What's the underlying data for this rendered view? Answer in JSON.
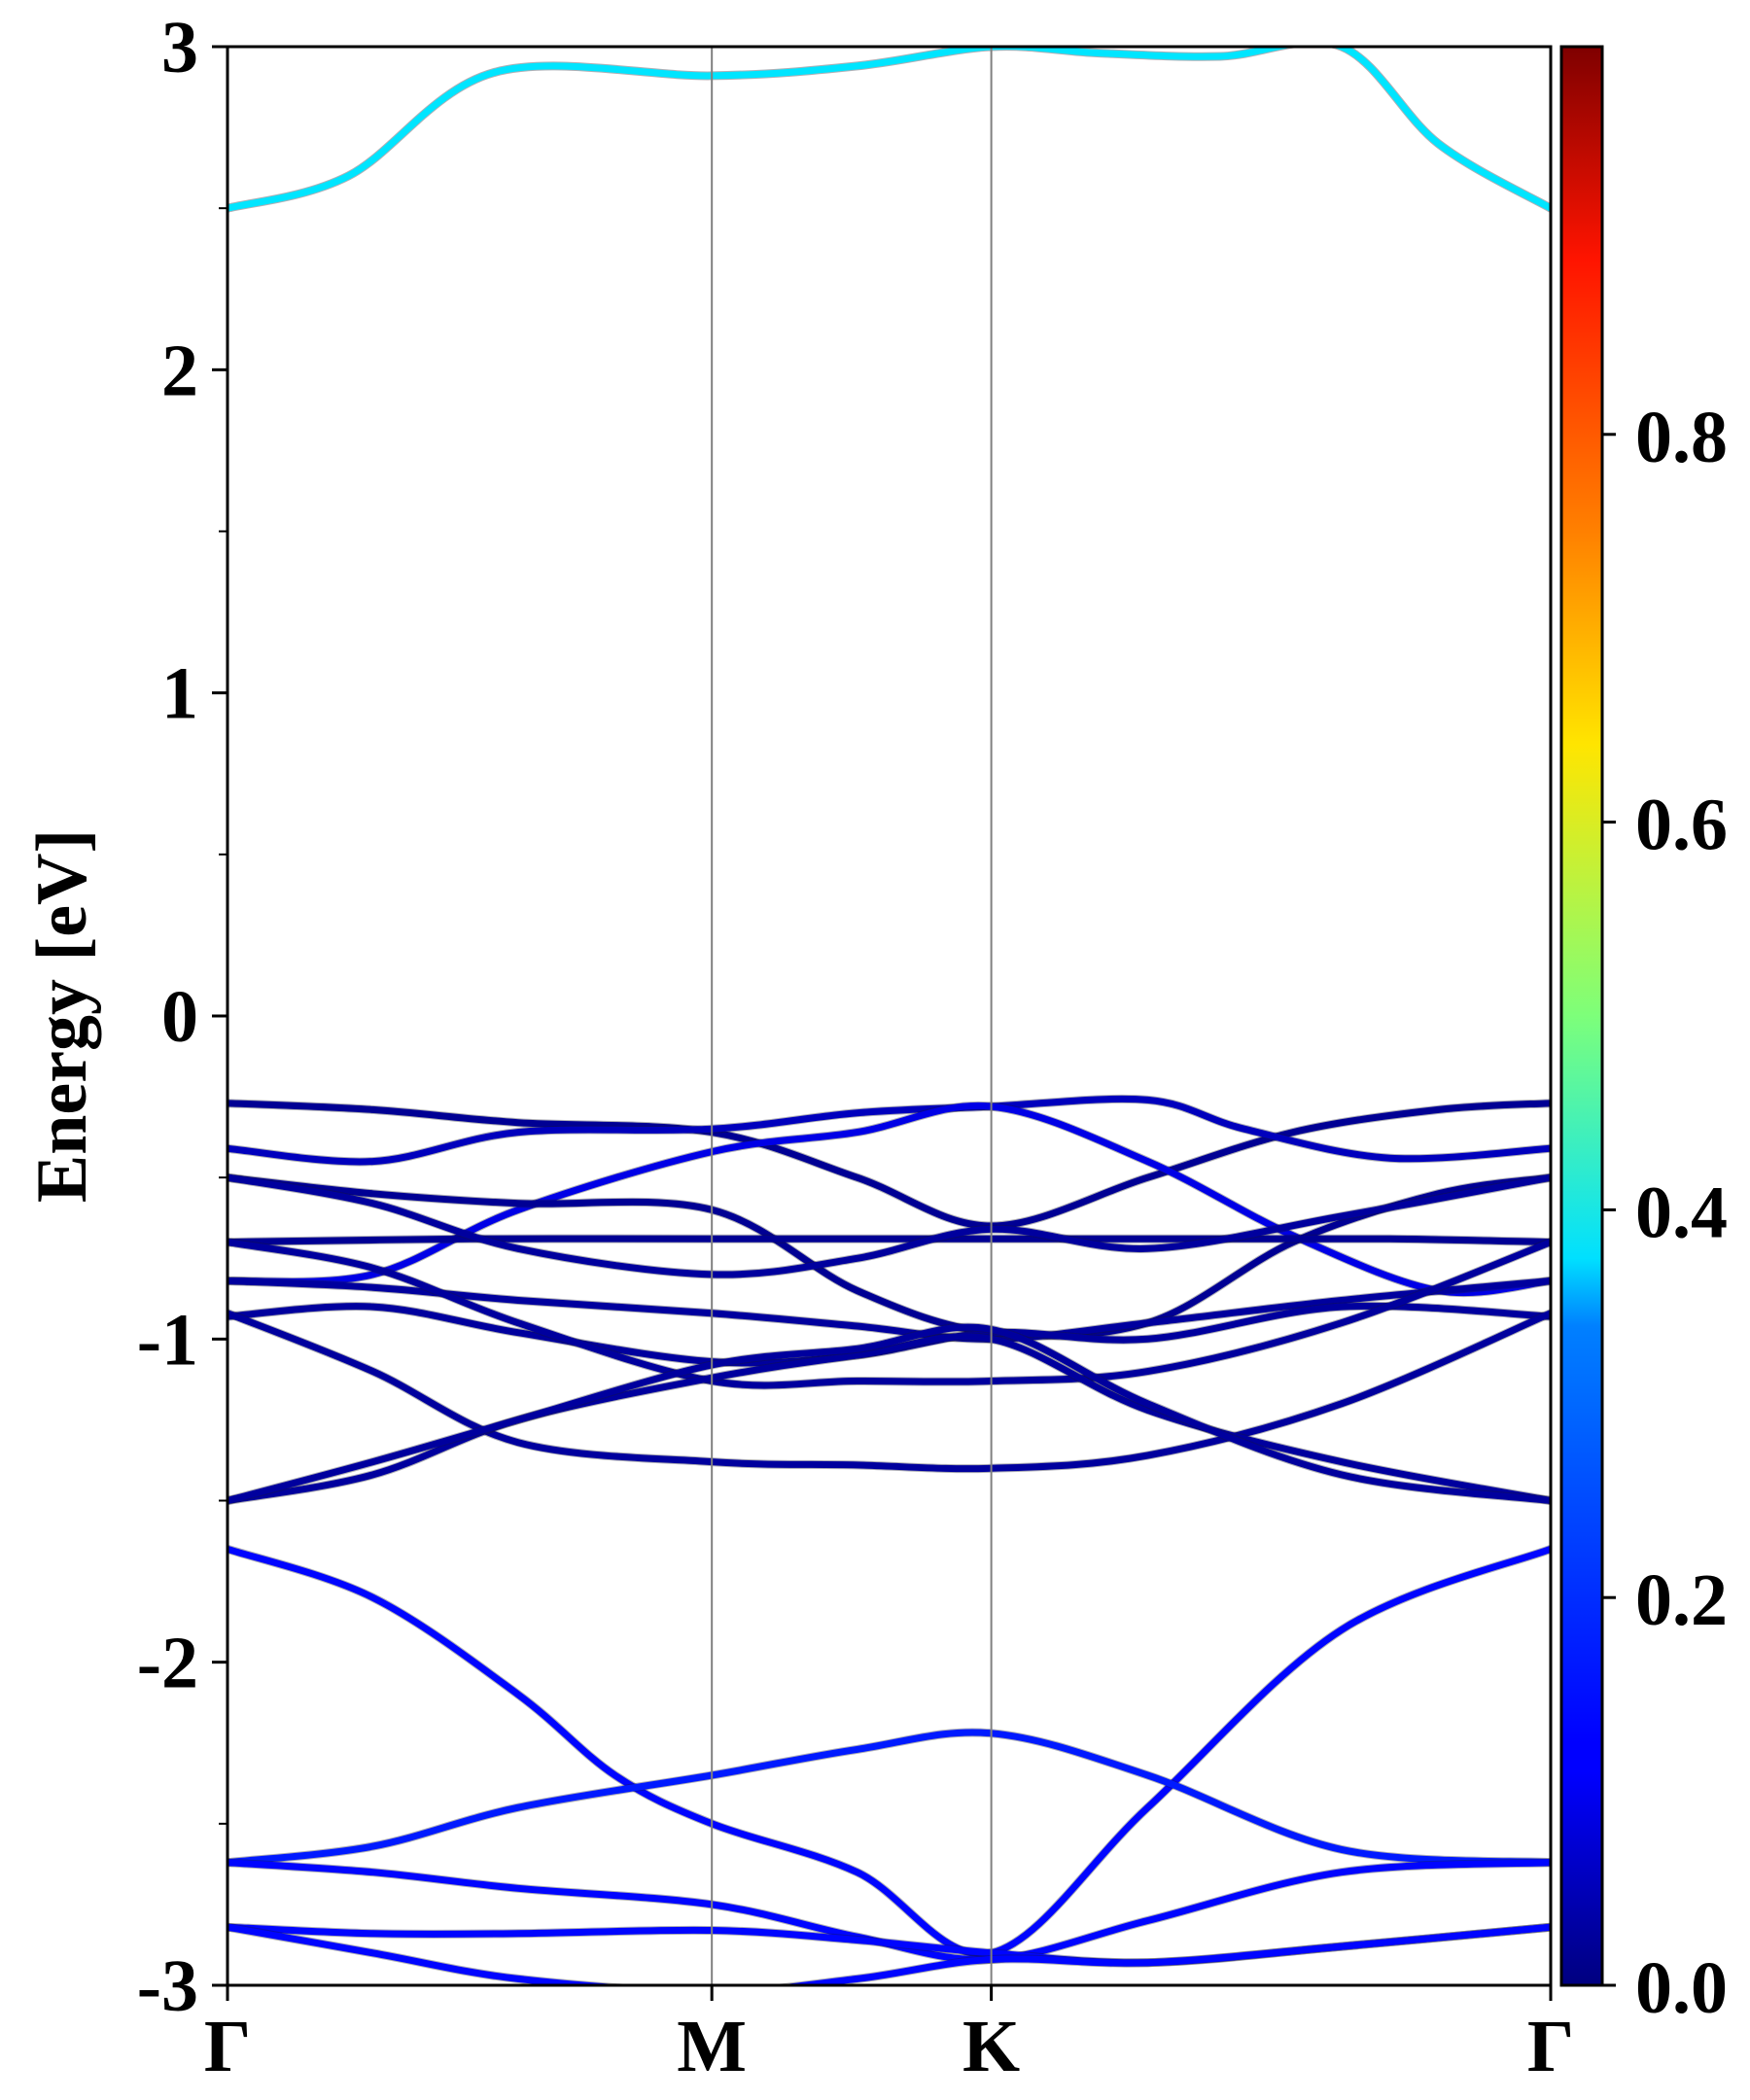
{
  "chart_data": {
    "type": "line",
    "title": "",
    "ylabel": "Energy [eV]",
    "xlabel": "",
    "ylim": [
      -3,
      3
    ],
    "yticks": [
      -3,
      -2,
      -1,
      0,
      1,
      2,
      3
    ],
    "ytick_labels": [
      "-3",
      "-2",
      "-1",
      "0",
      "1",
      "2",
      "3"
    ],
    "x_ticks": [
      {
        "label": "Γ",
        "x": 0.0
      },
      {
        "label": "M",
        "x": 1.0
      },
      {
        "label": "K",
        "x": 1.577
      },
      {
        "label": "Γ",
        "x": 2.732
      }
    ],
    "xlim": [
      0,
      2.732
    ],
    "grid": false,
    "colorbar": {
      "colormap": "jet",
      "range": [
        0.0,
        1.0
      ],
      "ticks": [
        0.0,
        0.2,
        0.4,
        0.6,
        0.8
      ],
      "tick_labels": [
        "0.0",
        "0.2",
        "0.4",
        "0.6",
        "0.8"
      ]
    },
    "series": [
      {
        "weight": 0.35,
        "x": [
          0,
          0.25,
          0.55,
          1.0,
          1.3,
          1.577,
          1.8,
          2.05,
          2.3,
          2.5,
          2.732
        ],
        "y": [
          2.5,
          2.6,
          2.92,
          2.91,
          2.94,
          3.0,
          2.98,
          2.97,
          3.0,
          2.7,
          2.5
        ]
      },
      {
        "weight": 0.02,
        "x": [
          0,
          0.3,
          0.6,
          1.0,
          1.3,
          1.577,
          1.9,
          2.2,
          2.5,
          2.732
        ],
        "y": [
          -0.27,
          -0.29,
          -0.33,
          -0.36,
          -0.5,
          -0.65,
          -0.5,
          -0.36,
          -0.29,
          -0.27
        ]
      },
      {
        "weight": 0.06,
        "x": [
          0,
          0.3,
          0.6,
          1.0,
          1.3,
          1.577,
          1.9,
          2.1,
          2.4,
          2.732
        ],
        "y": [
          -0.41,
          -0.45,
          -0.36,
          -0.35,
          -0.3,
          -0.28,
          -0.26,
          -0.35,
          -0.44,
          -0.41
        ]
      },
      {
        "weight": 0.1,
        "x": [
          0,
          0.3,
          0.6,
          1.0,
          1.3,
          1.577,
          1.9,
          2.2,
          2.5,
          2.732
        ],
        "y": [
          -0.82,
          -0.8,
          -0.6,
          -0.42,
          -0.36,
          -0.28,
          -0.45,
          -0.68,
          -0.85,
          -0.82
        ]
      },
      {
        "weight": 0.02,
        "x": [
          0,
          0.3,
          0.6,
          1.0,
          1.3,
          1.577,
          1.9,
          2.2,
          2.5,
          2.732
        ],
        "y": [
          -0.5,
          -0.55,
          -0.58,
          -0.6,
          -0.85,
          -0.98,
          -0.95,
          -0.7,
          -0.55,
          -0.5
        ]
      },
      {
        "weight": 0.02,
        "x": [
          0,
          0.5,
          1.0,
          1.577,
          2.0,
          2.4,
          2.732
        ],
        "y": [
          -0.7,
          -0.69,
          -0.69,
          -0.69,
          -0.69,
          -0.69,
          -0.7
        ]
      },
      {
        "weight": 0.03,
        "x": [
          0,
          0.3,
          0.6,
          1.0,
          1.3,
          1.577,
          1.9,
          2.3,
          2.732
        ],
        "y": [
          -0.5,
          -0.58,
          -0.72,
          -0.8,
          -0.75,
          -0.66,
          -0.72,
          -0.62,
          -0.5
        ]
      },
      {
        "weight": 0.03,
        "x": [
          0,
          0.3,
          0.6,
          1.0,
          1.3,
          1.577,
          1.9,
          2.3,
          2.732
        ],
        "y": [
          -0.82,
          -0.84,
          -0.88,
          -0.92,
          -0.96,
          -1.0,
          -0.95,
          -0.88,
          -0.82
        ]
      },
      {
        "weight": 0.03,
        "x": [
          0,
          0.3,
          0.6,
          1.0,
          1.3,
          1.577,
          1.9,
          2.3,
          2.732
        ],
        "y": [
          -0.93,
          -0.9,
          -0.98,
          -1.07,
          -1.05,
          -0.98,
          -1.0,
          -0.9,
          -0.93
        ]
      },
      {
        "weight": 0.03,
        "x": [
          0,
          0.3,
          0.6,
          1.0,
          1.3,
          1.577,
          1.9,
          2.3,
          2.732
        ],
        "y": [
          -0.7,
          -0.78,
          -0.95,
          -1.13,
          -1.13,
          -1.13,
          -1.1,
          -0.95,
          -0.7
        ]
      },
      {
        "weight": 0.03,
        "x": [
          0,
          0.3,
          0.6,
          1.0,
          1.3,
          1.577,
          1.9,
          2.3,
          2.732
        ],
        "y": [
          -0.92,
          -1.1,
          -1.32,
          -1.38,
          -1.39,
          -1.4,
          -1.36,
          -1.2,
          -0.92
        ]
      },
      {
        "weight": 0.03,
        "x": [
          0,
          0.3,
          0.6,
          1.0,
          1.3,
          1.577,
          1.9,
          2.3,
          2.732
        ],
        "y": [
          -1.5,
          -1.42,
          -1.25,
          -1.12,
          -1.05,
          -1.0,
          -1.22,
          -1.38,
          -1.5
        ]
      },
      {
        "weight": 0.03,
        "x": [
          0,
          0.3,
          0.6,
          1.0,
          1.3,
          1.577,
          1.9,
          2.3,
          2.732
        ],
        "y": [
          -1.5,
          -1.38,
          -1.25,
          -1.08,
          -1.03,
          -0.97,
          -1.2,
          -1.42,
          -1.5
        ]
      },
      {
        "weight": 0.13,
        "x": [
          0,
          0.3,
          0.6,
          0.8,
          1.0,
          1.3,
          1.577,
          1.9,
          2.3,
          2.732
        ],
        "y": [
          -1.65,
          -1.8,
          -2.1,
          -2.35,
          -2.5,
          -2.65,
          -2.9,
          -2.45,
          -1.9,
          -1.65
        ]
      },
      {
        "weight": 0.15,
        "x": [
          0,
          0.3,
          0.6,
          1.0,
          1.3,
          1.577,
          1.9,
          2.3,
          2.732
        ],
        "y": [
          -2.62,
          -2.57,
          -2.45,
          -2.35,
          -2.27,
          -2.22,
          -2.35,
          -2.58,
          -2.62
        ]
      },
      {
        "weight": 0.13,
        "x": [
          0,
          0.3,
          0.6,
          1.0,
          1.3,
          1.577,
          1.9,
          2.3,
          2.732
        ],
        "y": [
          -2.62,
          -2.65,
          -2.7,
          -2.75,
          -2.85,
          -2.92,
          -2.8,
          -2.65,
          -2.62
        ]
      },
      {
        "weight": 0.13,
        "x": [
          0,
          0.3,
          0.6,
          1.0,
          1.3,
          1.577,
          1.9,
          2.3,
          2.732
        ],
        "y": [
          -2.82,
          -2.84,
          -2.84,
          -2.83,
          -2.86,
          -2.9,
          -2.93,
          -2.88,
          -2.82
        ]
      },
      {
        "weight": 0.13,
        "x": [
          0,
          0.3,
          0.6,
          1.0,
          1.3,
          1.577,
          1.9,
          2.3,
          2.732
        ],
        "y": [
          -2.82,
          -2.9,
          -2.98,
          -3.02,
          -2.98,
          -2.92,
          -2.93,
          -2.88,
          -2.82
        ]
      }
    ]
  }
}
